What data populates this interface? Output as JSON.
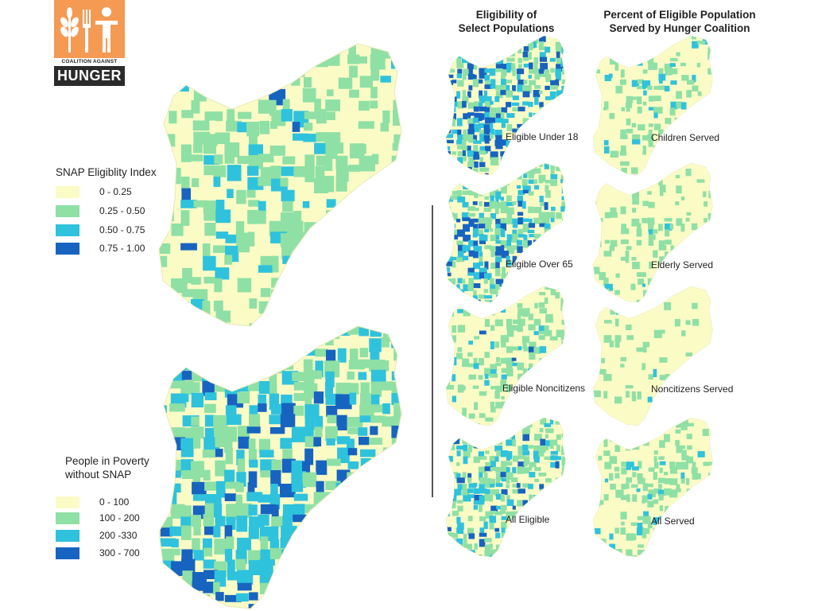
{
  "logo": {
    "org_line": "COALITION AGAINST",
    "name": "HUNGER",
    "icon_names": [
      "wheat-icon",
      "fork-icon",
      "person-icon"
    ]
  },
  "colors": {
    "class1": "#fbfbc6",
    "class2": "#8fe0a5",
    "class3": "#2fc2dc",
    "class4": "#1764c0"
  },
  "snap_map": {
    "legend_title": "SNAP Eligiblity Index",
    "legend": [
      {
        "label": "0 - 0.25"
      },
      {
        "label": "0.25 - 0.50"
      },
      {
        "label": "0.50 - 0.75"
      },
      {
        "label": "0.75 - 1.00"
      }
    ]
  },
  "poverty_map": {
    "legend_title_line1": "People in Poverty",
    "legend_title_line2": "without SNAP",
    "legend": [
      {
        "label": "0 - 100"
      },
      {
        "label": "100 - 200"
      },
      {
        "label": "200 -330"
      },
      {
        "label": "300 - 700"
      }
    ]
  },
  "eligibility_column": {
    "title_line1": "Eligibility of",
    "title_line2": "Select Populations",
    "panels": [
      {
        "label": "Eligible Under 18"
      },
      {
        "label": "Eligible Over 65"
      },
      {
        "label": "Eligible Noncitizens"
      },
      {
        "label": "All Eligible"
      }
    ]
  },
  "served_column": {
    "title_line1": "Percent of Eligible Population",
    "title_line2": "Served by Hunger Coalition",
    "panels": [
      {
        "label": "Children Served"
      },
      {
        "label": "Elderly Served"
      },
      {
        "label": "Noncitizens Served"
      },
      {
        "label": "All Served"
      }
    ]
  }
}
